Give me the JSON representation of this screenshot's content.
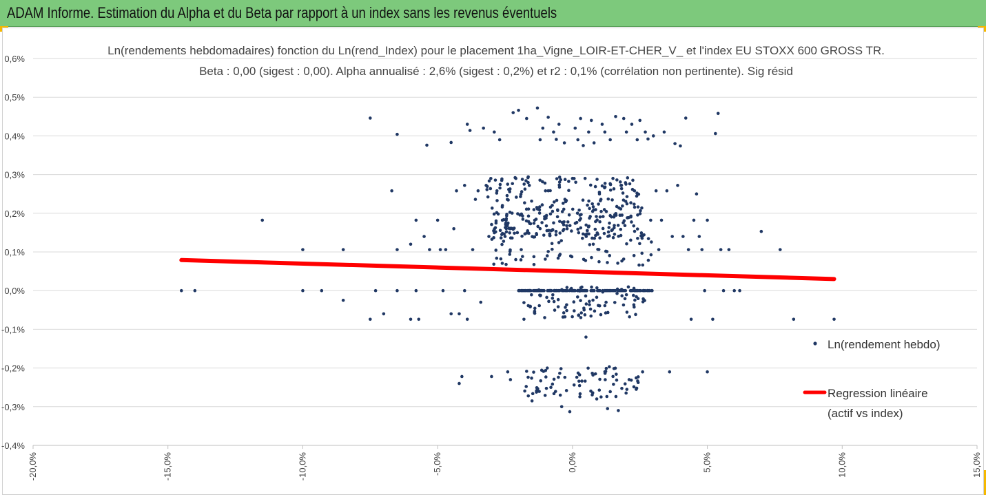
{
  "banner": {
    "title": "ADAM Informe. Estimation du Alpha et du Beta par rapport à un index sans les revenus éventuels"
  },
  "colors": {
    "banner": "#7dc97c",
    "accent": "#f5b800",
    "points": "#203864",
    "regression": "#ff0000",
    "grid": "#d9d9d9"
  },
  "chart_data": {
    "type": "scatter",
    "title": [
      "Ln(rendements hebdomadaires) fonction du Ln(rend_Index) pour le placement 1ha_Vigne_LOIR-ET-CHER_V_ et l'index EU STOXX 600 GROSS TR.",
      "Beta : 0,00 (sigest : 0,00). Alpha annualisé : 2,6% (sigest : 0,2%) et r2 : 0,1% (corrélation non pertinente). Sig résid"
    ],
    "xlabel": "",
    "ylabel": "",
    "xlim": [
      -0.2,
      0.15
    ],
    "ylim": [
      -0.004,
      0.006
    ],
    "grid": "horizontal",
    "legend_position": "right",
    "x_ticks": [
      "-20,0%",
      "-15,0%",
      "-10,0%",
      "-5,0%",
      "0,0%",
      "5,0%",
      "10,0%",
      "15,0%"
    ],
    "y_ticks": [
      "0,6%",
      "0,5%",
      "0,4%",
      "0,3%",
      "0,2%",
      "0,1%",
      "0,0%",
      "-0,1%",
      "-0,2%",
      "-0,3%",
      "-0,4%"
    ],
    "series": [
      {
        "name": "Ln(rendement hebdo)",
        "kind": "scatter",
        "points": [
          [
            -0.145,
            0
          ],
          [
            -0.14,
            0
          ],
          [
            -0.115,
            0.00182
          ],
          [
            -0.1,
            0.00106
          ],
          [
            -0.1,
            0
          ],
          [
            -0.093,
            0
          ],
          [
            -0.085,
            0.00106
          ],
          [
            -0.085,
            -0.00025
          ],
          [
            -0.075,
            0.00446
          ],
          [
            -0.075,
            -0.00074
          ],
          [
            -0.073,
            0
          ],
          [
            -0.07,
            -0.0006
          ],
          [
            -0.065,
            0.00404
          ],
          [
            -0.067,
            0.00258
          ],
          [
            -0.065,
            0.00106
          ],
          [
            -0.065,
            0
          ],
          [
            -0.06,
            0.0012
          ],
          [
            -0.06,
            -0.00074
          ],
          [
            -0.058,
            0.00182
          ],
          [
            -0.058,
            0
          ],
          [
            -0.057,
            -0.00074
          ],
          [
            -0.055,
            0.0014
          ],
          [
            -0.054,
            0.00376
          ],
          [
            -0.053,
            0.00106
          ],
          [
            -0.05,
            0.00182
          ],
          [
            -0.049,
            0.00106
          ],
          [
            -0.048,
            0
          ],
          [
            -0.047,
            0.00106
          ],
          [
            -0.045,
            0.00383
          ],
          [
            -0.045,
            -0.0006
          ],
          [
            -0.044,
            0.0016
          ],
          [
            -0.043,
            0.00258
          ],
          [
            -0.042,
            -0.0006
          ],
          [
            -0.042,
            -0.0024
          ],
          [
            -0.041,
            -0.00222
          ],
          [
            -0.04,
            0.00272
          ],
          [
            -0.04,
            0
          ],
          [
            -0.039,
            0.0043
          ],
          [
            -0.039,
            -0.00074
          ],
          [
            -0.038,
            0.00414
          ],
          [
            -0.037,
            0.00106
          ],
          [
            -0.036,
            0.00236
          ],
          [
            -0.035,
            0.00258
          ],
          [
            -0.034,
            -0.0003
          ],
          [
            -0.033,
            0.0042
          ],
          [
            -0.032,
            0.00272
          ],
          [
            -0.031,
            0.0014
          ],
          [
            -0.03,
            -0.00222
          ],
          [
            -0.029,
            0.0041
          ],
          [
            -0.028,
            0.00258
          ],
          [
            -0.027,
            0.0039
          ],
          [
            -0.026,
            0.00182
          ],
          [
            -0.025,
            0.0014
          ],
          [
            -0.024,
            -0.0021
          ],
          [
            -0.023,
            -0.0023
          ],
          [
            -0.022,
            0.0046
          ],
          [
            -0.021,
            0.0029
          ],
          [
            -0.02,
            0.00466
          ],
          [
            -0.019,
            0.00106
          ],
          [
            -0.018,
            -0.00074
          ],
          [
            -0.017,
            0.00445
          ],
          [
            -0.016,
            0.00272
          ],
          [
            -0.015,
            -0.00285
          ],
          [
            -0.014,
            0.00182
          ],
          [
            -0.013,
            0.00472
          ],
          [
            -0.012,
            0.0039
          ],
          [
            -0.011,
            0.0042
          ],
          [
            -0.01,
            0.00258
          ],
          [
            -0.009,
            0.00448
          ],
          [
            -0.008,
            -0.0025
          ],
          [
            -0.007,
            0.0041
          ],
          [
            -0.006,
            0.00391
          ],
          [
            -0.005,
            0.0043
          ],
          [
            -0.004,
            -0.003
          ],
          [
            -0.003,
            0.00382
          ],
          [
            -0.002,
            0.0016
          ],
          [
            -0.001,
            -0.00313
          ],
          [
            0.0,
            0.0029
          ],
          [
            0.001,
            0.0042
          ],
          [
            0.002,
            0.0039
          ],
          [
            0.003,
            0.00445
          ],
          [
            0.004,
            0.00375
          ],
          [
            0.005,
            -0.0012
          ],
          [
            0.006,
            0.0041
          ],
          [
            0.007,
            0.0044
          ],
          [
            0.008,
            0.00382
          ],
          [
            0.009,
            -0.0028
          ],
          [
            0.01,
            0.0025
          ],
          [
            0.011,
            0.0043
          ],
          [
            0.012,
            0.0041
          ],
          [
            0.013,
            -0.00305
          ],
          [
            0.014,
            0.0039
          ],
          [
            0.015,
            0.0029
          ],
          [
            0.016,
            0.0045
          ],
          [
            0.017,
            -0.0031
          ],
          [
            0.018,
            0.00272
          ],
          [
            0.019,
            0.00445
          ],
          [
            0.02,
            0.0041
          ],
          [
            0.021,
            -0.0023
          ],
          [
            0.022,
            0.0043
          ],
          [
            0.023,
            0.00258
          ],
          [
            0.024,
            0.0039
          ],
          [
            0.025,
            0.0044
          ],
          [
            0.026,
            -0.0021
          ],
          [
            0.027,
            0.0041
          ],
          [
            0.028,
            0.00392
          ],
          [
            0.029,
            0.00182
          ],
          [
            0.03,
            0.004
          ],
          [
            0.031,
            0.00258
          ],
          [
            0.032,
            0.00106
          ],
          [
            0.033,
            0.00182
          ],
          [
            0.034,
            0.0041
          ],
          [
            0.035,
            0.00258
          ],
          [
            0.036,
            -0.0021
          ],
          [
            0.037,
            0.0014
          ],
          [
            0.038,
            0.0038
          ],
          [
            0.039,
            0.00272
          ],
          [
            0.04,
            0.00374
          ],
          [
            0.041,
            0.0014
          ],
          [
            0.042,
            0.00446
          ],
          [
            0.043,
            0.00106
          ],
          [
            0.044,
            -0.00074
          ],
          [
            0.045,
            0.00182
          ],
          [
            0.046,
            0.0025
          ],
          [
            0.047,
            0.0014
          ],
          [
            0.048,
            0.00106
          ],
          [
            0.049,
            0
          ],
          [
            0.05,
            -0.0021
          ],
          [
            0.05,
            0.00182
          ],
          [
            0.052,
            -0.00074
          ],
          [
            0.053,
            0.00406
          ],
          [
            0.054,
            0.00458
          ],
          [
            0.055,
            0.00106
          ],
          [
            0.056,
            0
          ],
          [
            0.058,
            0.00106
          ],
          [
            0.06,
            0
          ],
          [
            0.062,
            0
          ],
          [
            0.07,
            0.00153
          ],
          [
            0.077,
            0.00106
          ],
          [
            0.082,
            -0.00074
          ],
          [
            0.097,
            -0.00074
          ]
        ]
      },
      {
        "name": "Regression linéaire (actif vs index)",
        "kind": "line",
        "x": [
          -0.145,
          0.097
        ],
        "y": [
          0.00079,
          0.0003
        ]
      }
    ],
    "dense_bands": [
      {
        "y_center": 0.0,
        "x_range": [
          -0.02,
          0.03
        ],
        "count": 160
      },
      {
        "y_center": -0.0003,
        "x_range": [
          -0.018,
          0.028
        ],
        "count": 90
      },
      {
        "y_center": 0.00175,
        "x_range": [
          -0.03,
          0.027
        ],
        "count": 200
      },
      {
        "y_center": 0.00255,
        "x_range": [
          -0.032,
          0.025
        ],
        "count": 110
      },
      {
        "y_center": -0.00235,
        "x_range": [
          -0.018,
          0.025
        ],
        "count": 80
      },
      {
        "y_center": 0.00106,
        "x_range": [
          -0.03,
          0.03
        ],
        "count": 60
      }
    ],
    "legend": [
      {
        "label": "Ln(rendement hebdo)",
        "marker": "dot"
      },
      {
        "label_lines": [
          "Regression linéaire",
          "(actif vs index)"
        ],
        "marker": "line"
      }
    ]
  }
}
